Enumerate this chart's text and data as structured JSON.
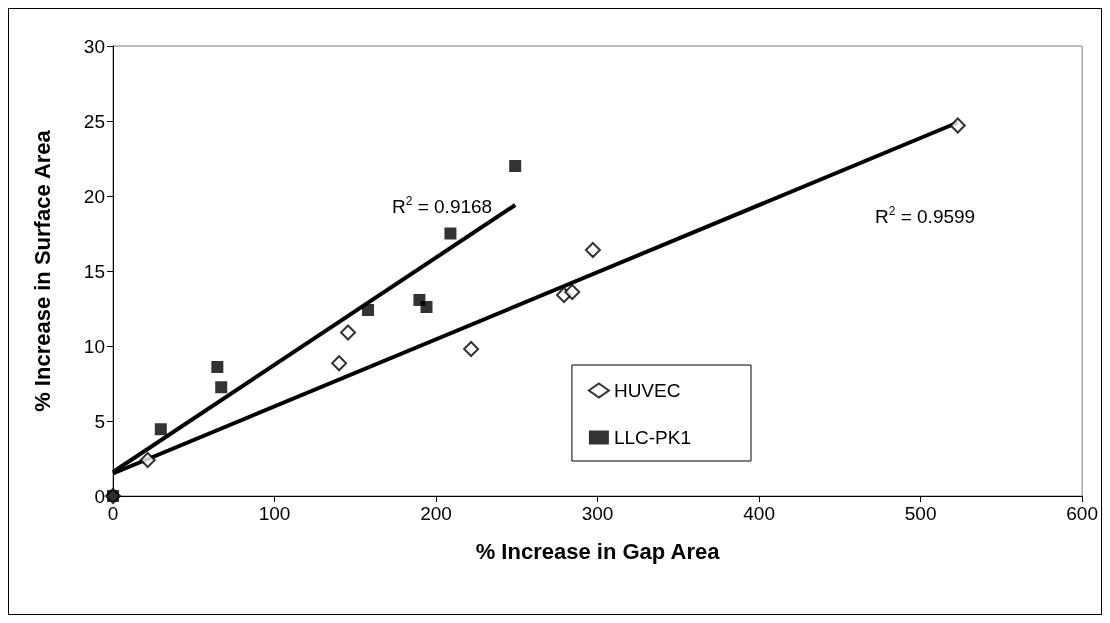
{
  "chart_data": {
    "type": "scatter",
    "xlabel": "% Increase in Gap Area",
    "ylabel": "% Increase in Surface Area",
    "xlim": [
      0,
      600
    ],
    "xticks": [
      0,
      100,
      200,
      300,
      400,
      500,
      600
    ],
    "ylim": [
      0,
      30
    ],
    "yticks": [
      0,
      5,
      10,
      15,
      20,
      25,
      30
    ],
    "grid": false,
    "legend": "bottom right",
    "series": [
      {
        "name": "HUVEC",
        "color": "#000000",
        "marker": "diamond",
        "x": [
          0,
          21.5,
          140,
          145.5,
          221.7,
          279.2,
          284.3,
          297.1,
          523
        ],
        "values": [
          0,
          2.4,
          8.85,
          10.9,
          9.8,
          13.4,
          13.6,
          16.4,
          24.7
        ]
      },
      {
        "name": "LLC-PK1",
        "color": "#000000",
        "marker": "square",
        "x": [
          0,
          29.6,
          64.6,
          67,
          157.9,
          189.7,
          194.1,
          208.9,
          249
        ],
        "values": [
          0,
          4.45,
          8.6,
          7.25,
          12.4,
          13.07,
          12.6,
          17.5,
          22
        ]
      },
      {
        "type": "line",
        "color": "#000000",
        "x": [
          0,
          249
        ],
        "values": [
          1.6,
          19.4
        ]
      },
      {
        "type": "line",
        "color": "#000000",
        "x": [
          0,
          523
        ],
        "values": [
          1.5,
          24.9
        ]
      }
    ],
    "annotations": [
      "R$^{2}$ = 0.9168",
      "R$^{2}$ = 0.9599"
    ]
  }
}
